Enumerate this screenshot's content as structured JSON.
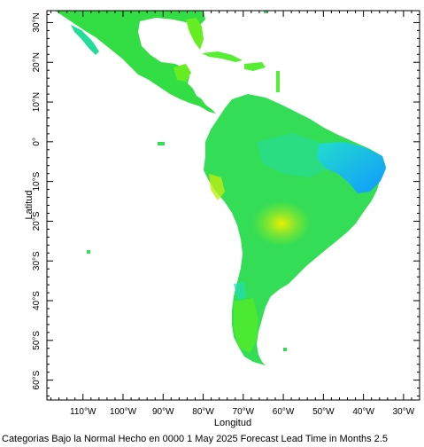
{
  "map": {
    "lat_labels": [
      "30°N",
      "20°N",
      "10°N",
      "0°",
      "10°S",
      "20°S",
      "30°S",
      "40°S",
      "50°S",
      "60°S"
    ],
    "lat_values": [
      30,
      20,
      10,
      0,
      -10,
      -20,
      -30,
      -40,
      -50,
      -60
    ],
    "lon_labels": [
      "110°W",
      "100°W",
      "90°W",
      "80°W",
      "70°W",
      "60°W",
      "50°W",
      "40°W",
      "30°W"
    ],
    "lon_values": [
      -110,
      -100,
      -90,
      -80,
      -70,
      -60,
      -50,
      -40,
      -30
    ],
    "xlabel": "Longitud",
    "ylabel": "Latitud",
    "lon_range": [
      -119,
      -26
    ],
    "lat_range": [
      -65,
      33
    ],
    "colors": {
      "land_green": "#33dd33",
      "land_lightgreen": "#66ee22",
      "land_yellowgreen": "#99ee00",
      "land_yellow": "#ddee00",
      "land_cyan": "#22eebb",
      "land_teal": "#00ddee",
      "land_blue": "#2299ff"
    }
  },
  "caption": "Categorias Bajo la Normal Hecho en 0000 1 May 2025 Forecast Lead Time in Months 2.5"
}
